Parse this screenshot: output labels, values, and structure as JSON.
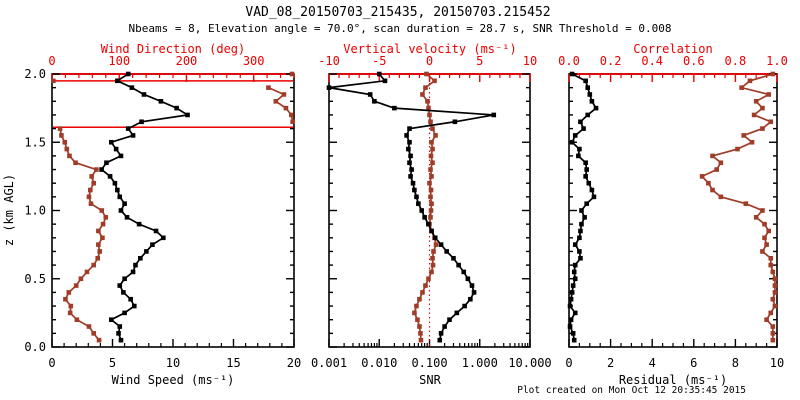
{
  "header": {
    "title": "VAD_08_20150703_215435, 20150703.215452",
    "subtitle": "Nbeams = 8, Elevation angle = 70.0°, scan duration = 28.7 s, SNR Threshold = 0.008"
  },
  "footer": {
    "created_note": "Plot created on Mon Oct 12 20:35:45 2015"
  },
  "colors": {
    "background": "#ffffff",
    "axis_black": "#000000",
    "axis_red": "#ec0000",
    "data_black": "#000000",
    "data_red": "#a03c28"
  },
  "chart_data": {
    "type": "line",
    "orientation": "vertical-profile",
    "grid": "off",
    "z_km": [
      2.0,
      1.95,
      1.9,
      1.85,
      1.8,
      1.75,
      1.7,
      1.65,
      1.6,
      1.55,
      1.5,
      1.45,
      1.4,
      1.35,
      1.3,
      1.25,
      1.2,
      1.15,
      1.1,
      1.05,
      1.0,
      0.95,
      0.9,
      0.85,
      0.8,
      0.75,
      0.7,
      0.65,
      0.6,
      0.55,
      0.5,
      0.45,
      0.4,
      0.35,
      0.3,
      0.25,
      0.2,
      0.15,
      0.1,
      0.05
    ],
    "y_axis": {
      "label": "z (km AGL)",
      "range": [
        0,
        2
      ],
      "ticks": [
        0,
        0.5,
        1,
        1.5,
        2
      ],
      "tick_labels": [
        "0.0",
        "0.5",
        "1.0",
        "1.5",
        "2.0"
      ],
      "minor_step": 0.1
    },
    "panels": [
      {
        "name": "wind",
        "bottom_axis": {
          "label": "Wind Speed (ms⁻¹)",
          "scale": "linear",
          "range": [
            0,
            20
          ],
          "ticks": [
            0,
            5,
            10,
            15,
            20
          ],
          "tick_labels": [
            "0",
            "5",
            "10",
            "15",
            "20"
          ],
          "minor_step": 1
        },
        "top_axis": {
          "label": "Wind Direction (deg)",
          "scale": "linear",
          "range": [
            0,
            360
          ],
          "ticks": [
            0,
            100,
            200,
            300
          ],
          "tick_labels": [
            "0",
            "100",
            "200",
            "300"
          ],
          "minor_step": 20
        },
        "wrap_lines_z": [
          1.95,
          1.61
        ],
        "series": [
          {
            "name": "wind-direction",
            "axis": "top",
            "color_key": "data_red",
            "break_gap": 180,
            "values": [
              357,
              2,
              322,
              345,
              333,
              348,
              356,
              358,
              12,
              14,
              19,
              22,
              26,
              35,
              66,
              59,
              62,
              57,
              55,
              58,
              74,
              80,
              76,
              69,
              75,
              69,
              71,
              68,
              62,
              52,
              43,
              36,
              25,
              20,
              28,
              27,
              37,
              55,
              62,
              70
            ]
          },
          {
            "name": "wind-speed",
            "axis": "bottom",
            "color_key": "data_black",
            "values": [
              6.3,
              5.4,
              6.6,
              7.6,
              9.0,
              10.3,
              11.2,
              7.4,
              6.3,
              6.7,
              4.9,
              5.3,
              5.7,
              4.5,
              4.1,
              4.8,
              5.2,
              5.4,
              5.6,
              6.0,
              5.7,
              6.2,
              7.2,
              8.6,
              9.2,
              8.3,
              7.8,
              7.3,
              6.9,
              6.7,
              6.0,
              5.6,
              5.9,
              6.5,
              6.8,
              6.0,
              4.9,
              5.6,
              5.5,
              5.7
            ]
          }
        ]
      },
      {
        "name": "snr",
        "bottom_axis": {
          "label": "SNR",
          "scale": "log",
          "range": [
            0.001,
            10
          ],
          "ticks": [
            0.001,
            0.01,
            0.1,
            1,
            10
          ],
          "tick_labels": [
            "0.001",
            "0.010",
            "0.100",
            "1.000",
            "10.000"
          ],
          "log_minor": true
        },
        "top_axis": {
          "label": "Vertical velocity (ms⁻¹)",
          "scale": "linear",
          "range": [
            -10,
            10
          ],
          "ticks": [
            -10,
            -5,
            0,
            5,
            10
          ],
          "tick_labels": [
            "-10",
            "-5",
            "0",
            "5",
            "10"
          ],
          "minor_step": 1,
          "zero_line": true
        },
        "series": [
          {
            "name": "vertical-velocity",
            "axis": "top",
            "color_key": "data_red",
            "values": [
              -0.3,
              0.5,
              -0.4,
              -0.7,
              -0.2,
              -0.1,
              0.0,
              0.1,
              0.3,
              0.6,
              0.2,
              0.3,
              0.15,
              0.3,
              0.1,
              0.2,
              0.0,
              0.15,
              0.1,
              0.2,
              0.15,
              0.1,
              0.0,
              0.2,
              0.5,
              0.65,
              0.4,
              0.3,
              0.35,
              0.2,
              -0.1,
              -0.4,
              -0.7,
              -1.0,
              -1.3,
              -1.5,
              -1.2,
              -1.0,
              -0.9,
              -0.85
            ]
          },
          {
            "name": "snr",
            "axis": "bottom",
            "color_key": "data_black",
            "values": [
              0.01,
              0.013,
              0.001,
              0.0066,
              0.008,
              0.02,
              1.9,
              0.32,
              0.04,
              0.035,
              0.04,
              0.038,
              0.042,
              0.04,
              0.044,
              0.042,
              0.047,
              0.05,
              0.055,
              0.06,
              0.07,
              0.08,
              0.095,
              0.11,
              0.13,
              0.17,
              0.22,
              0.3,
              0.38,
              0.48,
              0.58,
              0.7,
              0.77,
              0.65,
              0.5,
              0.35,
              0.25,
              0.2,
              0.17,
              0.16
            ]
          }
        ]
      },
      {
        "name": "residual",
        "bottom_axis": {
          "label": "Residual (ms⁻¹)",
          "scale": "linear",
          "range": [
            0,
            10
          ],
          "ticks": [
            0,
            2,
            4,
            6,
            8,
            10
          ],
          "tick_labels": [
            "0",
            "2",
            "4",
            "6",
            "8",
            "10"
          ],
          "minor_step": 0.5
        },
        "top_axis": {
          "label": "Correlation",
          "scale": "linear",
          "range": [
            0,
            1
          ],
          "ticks": [
            0,
            0.2,
            0.4,
            0.6,
            0.8,
            1.0
          ],
          "tick_labels": [
            "0.0",
            "0.2",
            "0.4",
            "0.6",
            "0.8",
            "1.0"
          ],
          "minor_step": 0.05
        },
        "series": [
          {
            "name": "correlation",
            "axis": "top",
            "color_key": "data_red",
            "values": [
              0.98,
              0.87,
              0.83,
              0.96,
              0.9,
              0.93,
              0.89,
              0.97,
              0.93,
              0.84,
              0.88,
              0.81,
              0.69,
              0.73,
              0.71,
              0.64,
              0.67,
              0.69,
              0.73,
              0.85,
              0.93,
              0.9,
              0.94,
              0.96,
              0.94,
              0.95,
              0.93,
              0.97,
              0.97,
              0.98,
              0.99,
              0.99,
              0.99,
              0.98,
              0.99,
              0.97,
              0.95,
              0.98,
              0.98,
              0.98
            ]
          },
          {
            "name": "residual",
            "axis": "bottom",
            "color_key": "data_black",
            "values": [
              0.15,
              0.8,
              0.9,
              1.0,
              1.1,
              1.3,
              0.9,
              0.55,
              0.7,
              0.3,
              0.15,
              0.5,
              0.45,
              0.8,
              0.85,
              0.8,
              0.95,
              1.1,
              1.2,
              0.85,
              0.6,
              0.75,
              0.6,
              0.55,
              0.5,
              0.3,
              0.5,
              0.55,
              0.3,
              0.25,
              0.3,
              0.2,
              0.15,
              0.1,
              0.05,
              0.3,
              0.1,
              0.05,
              0.2,
              0.25
            ]
          }
        ]
      }
    ]
  }
}
